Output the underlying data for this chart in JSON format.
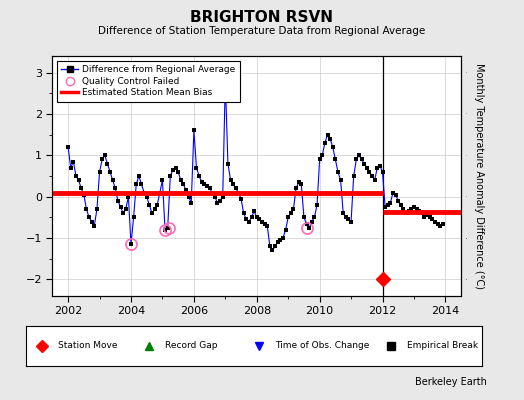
{
  "title": "BRIGHTON RSVN",
  "subtitle": "Difference of Station Temperature Data from Regional Average",
  "ylabel": "Monthly Temperature Anomaly Difference (°C)",
  "background_color": "#e8e8e8",
  "plot_bg_color": "#ffffff",
  "ylim": [
    -2.4,
    3.4
  ],
  "xlim": [
    2001.5,
    2014.5
  ],
  "yticks": [
    -2,
    -1,
    0,
    1,
    2,
    3
  ],
  "xticks": [
    2002,
    2004,
    2006,
    2008,
    2010,
    2012,
    2014
  ],
  "break_x": 2012.0,
  "bias_before": 0.08,
  "bias_after": -0.38,
  "station_move_x": 2012.0,
  "station_move_y": -2.0,
  "qc_failed": [
    [
      2004.0,
      -1.15
    ],
    [
      2005.08,
      -0.8
    ],
    [
      2005.2,
      -0.75
    ],
    [
      2009.6,
      -0.75
    ]
  ],
  "time_series": [
    [
      2002.0,
      1.2
    ],
    [
      2002.083,
      0.7
    ],
    [
      2002.167,
      0.85
    ],
    [
      2002.25,
      0.5
    ],
    [
      2002.333,
      0.4
    ],
    [
      2002.417,
      0.2
    ],
    [
      2002.5,
      0.05
    ],
    [
      2002.583,
      -0.3
    ],
    [
      2002.667,
      -0.5
    ],
    [
      2002.75,
      -0.6
    ],
    [
      2002.833,
      -0.7
    ],
    [
      2002.917,
      -0.3
    ],
    [
      2003.0,
      0.6
    ],
    [
      2003.083,
      0.9
    ],
    [
      2003.167,
      1.0
    ],
    [
      2003.25,
      0.8
    ],
    [
      2003.333,
      0.6
    ],
    [
      2003.417,
      0.4
    ],
    [
      2003.5,
      0.2
    ],
    [
      2003.583,
      -0.1
    ],
    [
      2003.667,
      -0.25
    ],
    [
      2003.75,
      -0.4
    ],
    [
      2003.833,
      -0.3
    ],
    [
      2003.917,
      0.0
    ],
    [
      2004.0,
      -1.15
    ],
    [
      2004.083,
      -0.5
    ],
    [
      2004.167,
      0.3
    ],
    [
      2004.25,
      0.5
    ],
    [
      2004.333,
      0.3
    ],
    [
      2004.417,
      0.1
    ],
    [
      2004.5,
      0.0
    ],
    [
      2004.583,
      -0.2
    ],
    [
      2004.667,
      -0.4
    ],
    [
      2004.75,
      -0.3
    ],
    [
      2004.833,
      -0.2
    ],
    [
      2004.917,
      0.1
    ],
    [
      2005.0,
      0.4
    ],
    [
      2005.083,
      -0.8
    ],
    [
      2005.167,
      -0.75
    ],
    [
      2005.25,
      0.5
    ],
    [
      2005.333,
      0.65
    ],
    [
      2005.417,
      0.7
    ],
    [
      2005.5,
      0.6
    ],
    [
      2005.583,
      0.4
    ],
    [
      2005.667,
      0.3
    ],
    [
      2005.75,
      0.15
    ],
    [
      2005.833,
      0.0
    ],
    [
      2005.917,
      -0.15
    ],
    [
      2006.0,
      1.6
    ],
    [
      2006.083,
      0.7
    ],
    [
      2006.167,
      0.5
    ],
    [
      2006.25,
      0.35
    ],
    [
      2006.333,
      0.3
    ],
    [
      2006.417,
      0.25
    ],
    [
      2006.5,
      0.2
    ],
    [
      2006.583,
      0.1
    ],
    [
      2006.667,
      0.0
    ],
    [
      2006.75,
      -0.15
    ],
    [
      2006.833,
      -0.1
    ],
    [
      2006.917,
      0.0
    ],
    [
      2007.0,
      2.8
    ],
    [
      2007.083,
      0.8
    ],
    [
      2007.167,
      0.4
    ],
    [
      2007.25,
      0.3
    ],
    [
      2007.333,
      0.2
    ],
    [
      2007.417,
      0.1
    ],
    [
      2007.5,
      -0.05
    ],
    [
      2007.583,
      -0.4
    ],
    [
      2007.667,
      -0.55
    ],
    [
      2007.75,
      -0.6
    ],
    [
      2007.833,
      -0.5
    ],
    [
      2007.917,
      -0.35
    ],
    [
      2008.0,
      -0.5
    ],
    [
      2008.083,
      -0.55
    ],
    [
      2008.167,
      -0.6
    ],
    [
      2008.25,
      -0.65
    ],
    [
      2008.333,
      -0.7
    ],
    [
      2008.417,
      -1.2
    ],
    [
      2008.5,
      -1.3
    ],
    [
      2008.583,
      -1.2
    ],
    [
      2008.667,
      -1.1
    ],
    [
      2008.75,
      -1.05
    ],
    [
      2008.833,
      -1.0
    ],
    [
      2008.917,
      -0.8
    ],
    [
      2009.0,
      -0.5
    ],
    [
      2009.083,
      -0.4
    ],
    [
      2009.167,
      -0.3
    ],
    [
      2009.25,
      0.2
    ],
    [
      2009.333,
      0.35
    ],
    [
      2009.417,
      0.3
    ],
    [
      2009.5,
      -0.5
    ],
    [
      2009.583,
      -0.65
    ],
    [
      2009.667,
      -0.75
    ],
    [
      2009.75,
      -0.6
    ],
    [
      2009.833,
      -0.5
    ],
    [
      2009.917,
      -0.2
    ],
    [
      2010.0,
      0.9
    ],
    [
      2010.083,
      1.0
    ],
    [
      2010.167,
      1.3
    ],
    [
      2010.25,
      1.5
    ],
    [
      2010.333,
      1.4
    ],
    [
      2010.417,
      1.2
    ],
    [
      2010.5,
      0.9
    ],
    [
      2010.583,
      0.6
    ],
    [
      2010.667,
      0.4
    ],
    [
      2010.75,
      -0.4
    ],
    [
      2010.833,
      -0.5
    ],
    [
      2010.917,
      -0.55
    ],
    [
      2011.0,
      -0.6
    ],
    [
      2011.083,
      0.5
    ],
    [
      2011.167,
      0.9
    ],
    [
      2011.25,
      1.0
    ],
    [
      2011.333,
      0.9
    ],
    [
      2011.417,
      0.8
    ],
    [
      2011.5,
      0.7
    ],
    [
      2011.583,
      0.6
    ],
    [
      2011.667,
      0.5
    ],
    [
      2011.75,
      0.4
    ],
    [
      2011.833,
      0.7
    ],
    [
      2011.917,
      0.75
    ],
    [
      2012.0,
      0.6
    ],
    [
      2012.083,
      -0.25
    ],
    [
      2012.167,
      -0.2
    ],
    [
      2012.25,
      -0.15
    ],
    [
      2012.333,
      0.1
    ],
    [
      2012.417,
      0.05
    ],
    [
      2012.5,
      -0.1
    ],
    [
      2012.583,
      -0.2
    ],
    [
      2012.667,
      -0.3
    ],
    [
      2012.75,
      -0.4
    ],
    [
      2012.833,
      -0.35
    ],
    [
      2012.917,
      -0.3
    ],
    [
      2013.0,
      -0.25
    ],
    [
      2013.083,
      -0.3
    ],
    [
      2013.167,
      -0.35
    ],
    [
      2013.25,
      -0.4
    ],
    [
      2013.333,
      -0.5
    ],
    [
      2013.417,
      -0.45
    ],
    [
      2013.5,
      -0.5
    ],
    [
      2013.583,
      -0.55
    ],
    [
      2013.667,
      -0.6
    ],
    [
      2013.75,
      -0.65
    ],
    [
      2013.833,
      -0.7
    ],
    [
      2013.917,
      -0.65
    ]
  ]
}
